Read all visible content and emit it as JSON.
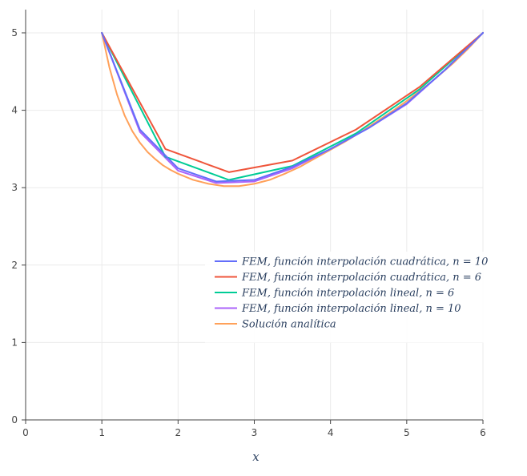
{
  "chart_data": {
    "type": "line",
    "xlabel": "x",
    "ylabel": "",
    "xlim": [
      0,
      6
    ],
    "ylim": [
      0,
      5.3
    ],
    "xticks": [
      0,
      1,
      2,
      3,
      4,
      5,
      6
    ],
    "yticks": [
      0,
      1,
      2,
      3,
      4,
      5
    ],
    "grid": true,
    "legend_position": "right",
    "series": [
      {
        "name": "FEM,  función interpolación cuadrática, n = 10",
        "color": "#636efa",
        "x": [
          1,
          1.5,
          2,
          2.5,
          3,
          3.5,
          4,
          4.5,
          5,
          5.5,
          6
        ],
        "y": [
          5.0,
          3.75,
          3.25,
          3.08,
          3.1,
          3.27,
          3.5,
          3.77,
          4.09,
          4.52,
          5.0
        ]
      },
      {
        "name": "FEM,  función interpolación cuadrática, n = 6",
        "color": "#ef553b",
        "x": [
          1,
          1.833,
          2.667,
          3.5,
          4.333,
          5.167,
          6
        ],
        "y": [
          5.0,
          3.5,
          3.2,
          3.35,
          3.75,
          4.3,
          5.0
        ]
      },
      {
        "name": "FEM,  función interpolación lineal, n = 6",
        "color": "#00cc96",
        "x": [
          1,
          1.833,
          2.667,
          3.5,
          4.333,
          5.167,
          6
        ],
        "y": [
          5.0,
          3.4,
          3.1,
          3.28,
          3.7,
          4.27,
          5.0
        ]
      },
      {
        "name": "FEM,  función interpolación lineal, n = 10",
        "color": "#ab63fa",
        "x": [
          1,
          1.5,
          2,
          2.5,
          3,
          3.5,
          4,
          4.5,
          5,
          5.5,
          6
        ],
        "y": [
          5.0,
          3.72,
          3.22,
          3.06,
          3.08,
          3.25,
          3.5,
          3.77,
          4.08,
          4.52,
          5.0
        ]
      },
      {
        "name": "Solución analítica",
        "color": "#ffa15a",
        "x": [
          1,
          1.1,
          1.2,
          1.3,
          1.4,
          1.5,
          1.6,
          1.7,
          1.8,
          1.9,
          2.0,
          2.2,
          2.4,
          2.6,
          2.8,
          3.0,
          3.2,
          3.4,
          3.6,
          3.8,
          4.0,
          4.2,
          4.4,
          4.6,
          4.8,
          5.0,
          5.2,
          5.4,
          5.6,
          5.8,
          6.0
        ],
        "y": [
          5.0,
          4.55,
          4.2,
          3.93,
          3.73,
          3.58,
          3.46,
          3.37,
          3.29,
          3.23,
          3.18,
          3.1,
          3.05,
          3.02,
          3.02,
          3.05,
          3.1,
          3.18,
          3.27,
          3.38,
          3.49,
          3.6,
          3.72,
          3.85,
          3.98,
          4.12,
          4.27,
          4.43,
          4.6,
          4.79,
          5.0
        ]
      }
    ]
  }
}
